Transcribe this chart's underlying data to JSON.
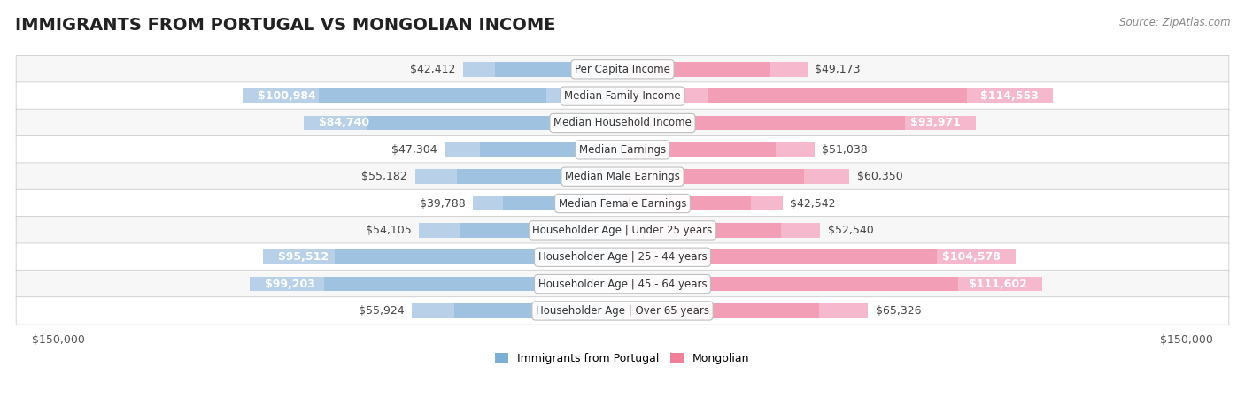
{
  "title": "IMMIGRANTS FROM PORTUGAL VS MONGOLIAN INCOME",
  "source": "Source: ZipAtlas.com",
  "categories": [
    "Per Capita Income",
    "Median Family Income",
    "Median Household Income",
    "Median Earnings",
    "Median Male Earnings",
    "Median Female Earnings",
    "Householder Age | Under 25 years",
    "Householder Age | 25 - 44 years",
    "Householder Age | 45 - 64 years",
    "Householder Age | Over 65 years"
  ],
  "portugal_values": [
    42412,
    100984,
    84740,
    47304,
    55182,
    39788,
    54105,
    95512,
    99203,
    55924
  ],
  "mongolian_values": [
    49173,
    114553,
    93971,
    51038,
    60350,
    42542,
    52540,
    104578,
    111602,
    65326
  ],
  "portugal_labels": [
    "$42,412",
    "$100,984",
    "$84,740",
    "$47,304",
    "$55,182",
    "$39,788",
    "$54,105",
    "$95,512",
    "$99,203",
    "$55,924"
  ],
  "mongolian_labels": [
    "$49,173",
    "$114,553",
    "$93,971",
    "$51,038",
    "$60,350",
    "$42,542",
    "$52,540",
    "$104,578",
    "$111,602",
    "$65,326"
  ],
  "portugal_bar_light": "#b8d0e8",
  "portugal_bar_mid": "#7aadd4",
  "mongolian_bar_light": "#f5b8cc",
  "mongolian_bar_mid": "#ee7799",
  "portugal_legend_color": "#7bafd4",
  "mongolian_legend_color": "#f08098",
  "axis_max": 150000,
  "title_fontsize": 14,
  "label_fontsize": 9,
  "category_fontsize": 8.5,
  "legend_fontsize": 9,
  "inside_threshold": 75000,
  "row_colors": [
    "#f7f7f7",
    "#ffffff",
    "#f7f7f7",
    "#ffffff",
    "#f7f7f7",
    "#ffffff",
    "#f7f7f7",
    "#ffffff",
    "#f7f7f7",
    "#ffffff"
  ]
}
